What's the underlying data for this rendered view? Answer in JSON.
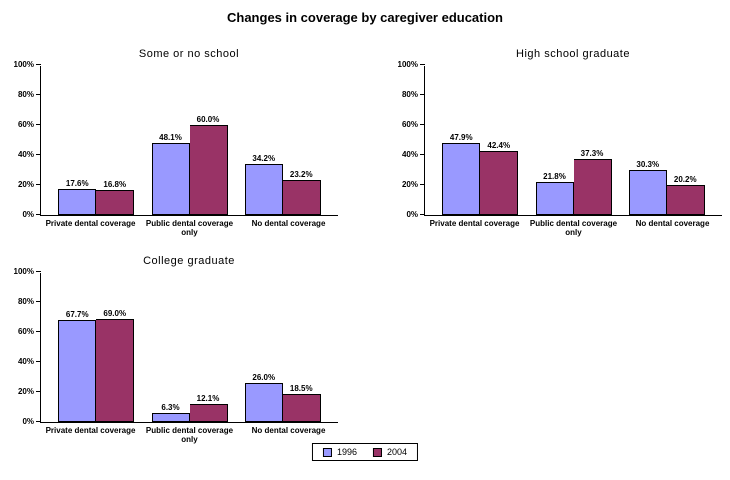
{
  "page_title": "Changes in coverage by caregiver education",
  "legend": [
    {
      "label": "1996",
      "color": "#9999FF"
    },
    {
      "label": "2004",
      "color": "#993366"
    }
  ],
  "legend_position": "bottom",
  "chart_data": [
    {
      "type": "bar",
      "title": "Some or no school",
      "categories": [
        "Private dental coverage",
        "Public dental coverage only",
        "No dental coverage"
      ],
      "series": [
        {
          "name": "1996",
          "values": [
            17.6,
            48.1,
            34.2
          ]
        },
        {
          "name": "2004",
          "values": [
            16.8,
            60.0,
            23.2
          ]
        }
      ],
      "xlabel": "",
      "ylabel": "",
      "ylim": [
        0,
        100
      ],
      "ytick_values": [
        0,
        20,
        40,
        60,
        80,
        100
      ],
      "ytick_labels": [
        "0%",
        "20%",
        "40%",
        "60%",
        "80%",
        "100%"
      ],
      "grid": false
    },
    {
      "type": "bar",
      "title": "High school graduate",
      "categories": [
        "Private dental coverage",
        "Public dental coverage only",
        "No dental coverage"
      ],
      "series": [
        {
          "name": "1996",
          "values": [
            47.9,
            21.8,
            30.3
          ]
        },
        {
          "name": "2004",
          "values": [
            42.4,
            37.3,
            20.2
          ]
        }
      ],
      "xlabel": "",
      "ylabel": "",
      "ylim": [
        0,
        100
      ],
      "ytick_values": [
        0,
        20,
        40,
        60,
        80,
        100
      ],
      "ytick_labels": [
        "0%",
        "20%",
        "40%",
        "60%",
        "80%",
        "100%"
      ],
      "grid": false
    },
    {
      "type": "bar",
      "title": "College graduate",
      "categories": [
        "Private dental coverage",
        "Public dental coverage only",
        "No dental coverage"
      ],
      "series": [
        {
          "name": "1996",
          "values": [
            67.7,
            6.3,
            26.0
          ]
        },
        {
          "name": "2004",
          "values": [
            69.0,
            12.1,
            18.5
          ]
        }
      ],
      "xlabel": "",
      "ylabel": "",
      "ylim": [
        0,
        100
      ],
      "ytick_values": [
        0,
        20,
        40,
        60,
        80,
        100
      ],
      "ytick_labels": [
        "0%",
        "20%",
        "40%",
        "60%",
        "80%",
        "100%"
      ],
      "grid": false
    }
  ]
}
